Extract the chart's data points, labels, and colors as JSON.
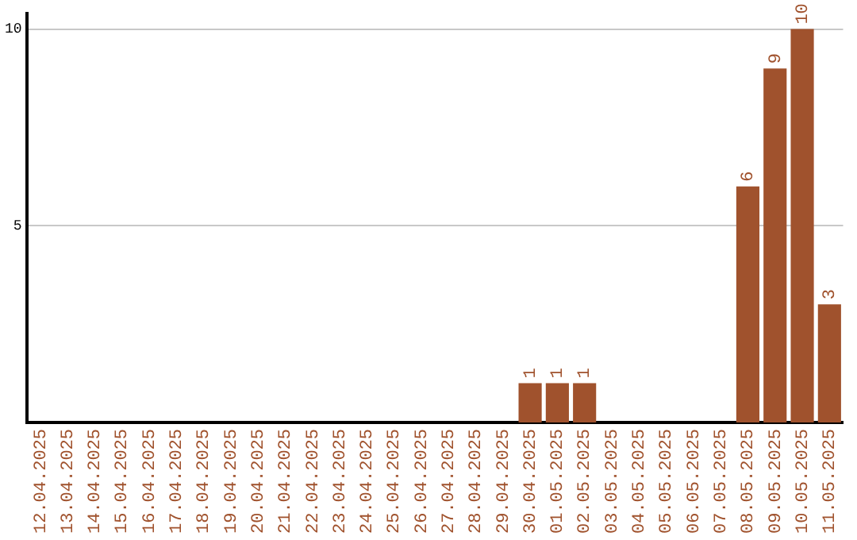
{
  "chart_data": {
    "type": "bar",
    "categories": [
      "12.04.2025",
      "13.04.2025",
      "14.04.2025",
      "15.04.2025",
      "16.04.2025",
      "17.04.2025",
      "18.04.2025",
      "19.04.2025",
      "20.04.2025",
      "21.04.2025",
      "22.04.2025",
      "23.04.2025",
      "24.04.2025",
      "25.04.2025",
      "26.04.2025",
      "27.04.2025",
      "28.04.2025",
      "29.04.2025",
      "30.04.2025",
      "01.05.2025",
      "02.05.2025",
      "03.05.2025",
      "04.05.2025",
      "05.05.2025",
      "06.05.2025",
      "07.05.2025",
      "08.05.2025",
      "09.05.2025",
      "10.05.2025",
      "11.05.2025"
    ],
    "values": [
      0,
      0,
      0,
      0,
      0,
      0,
      0,
      0,
      0,
      0,
      0,
      0,
      0,
      0,
      0,
      0,
      0,
      0,
      1,
      1,
      1,
      0,
      0,
      0,
      0,
      0,
      6,
      9,
      10,
      3
    ],
    "value_labels": [
      null,
      null,
      null,
      null,
      null,
      null,
      null,
      null,
      null,
      null,
      null,
      null,
      null,
      null,
      null,
      null,
      null,
      null,
      "1",
      "1",
      "1",
      null,
      null,
      null,
      null,
      null,
      "6",
      "9",
      "10",
      "3"
    ],
    "color": "#a0522d",
    "ylim": [
      0,
      10.4
    ],
    "yticks": [
      5,
      10
    ],
    "grid": "y",
    "legend": false
  }
}
